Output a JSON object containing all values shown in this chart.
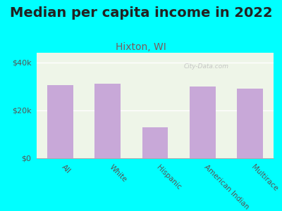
{
  "title": "Median per capita income in 2022",
  "subtitle": "Hixton, WI",
  "categories": [
    "All",
    "White",
    "Hispanic",
    "American Indian",
    "Multirace"
  ],
  "values": [
    30500,
    31000,
    13000,
    30000,
    29000
  ],
  "bar_color": "#C8A8D8",
  "background_color": "#00FFFF",
  "plot_bg_color": "#EEF5E8",
  "yticks": [
    0,
    20000,
    40000
  ],
  "ytick_labels": [
    "$0",
    "$20k",
    "$40k"
  ],
  "ylim": [
    0,
    44000
  ],
  "title_fontsize": 14,
  "subtitle_fontsize": 10,
  "title_color": "#222222",
  "subtitle_color": "#7A5A5A",
  "watermark": "City-Data.com",
  "xlabel_rotation": -45,
  "bar_width": 0.55
}
